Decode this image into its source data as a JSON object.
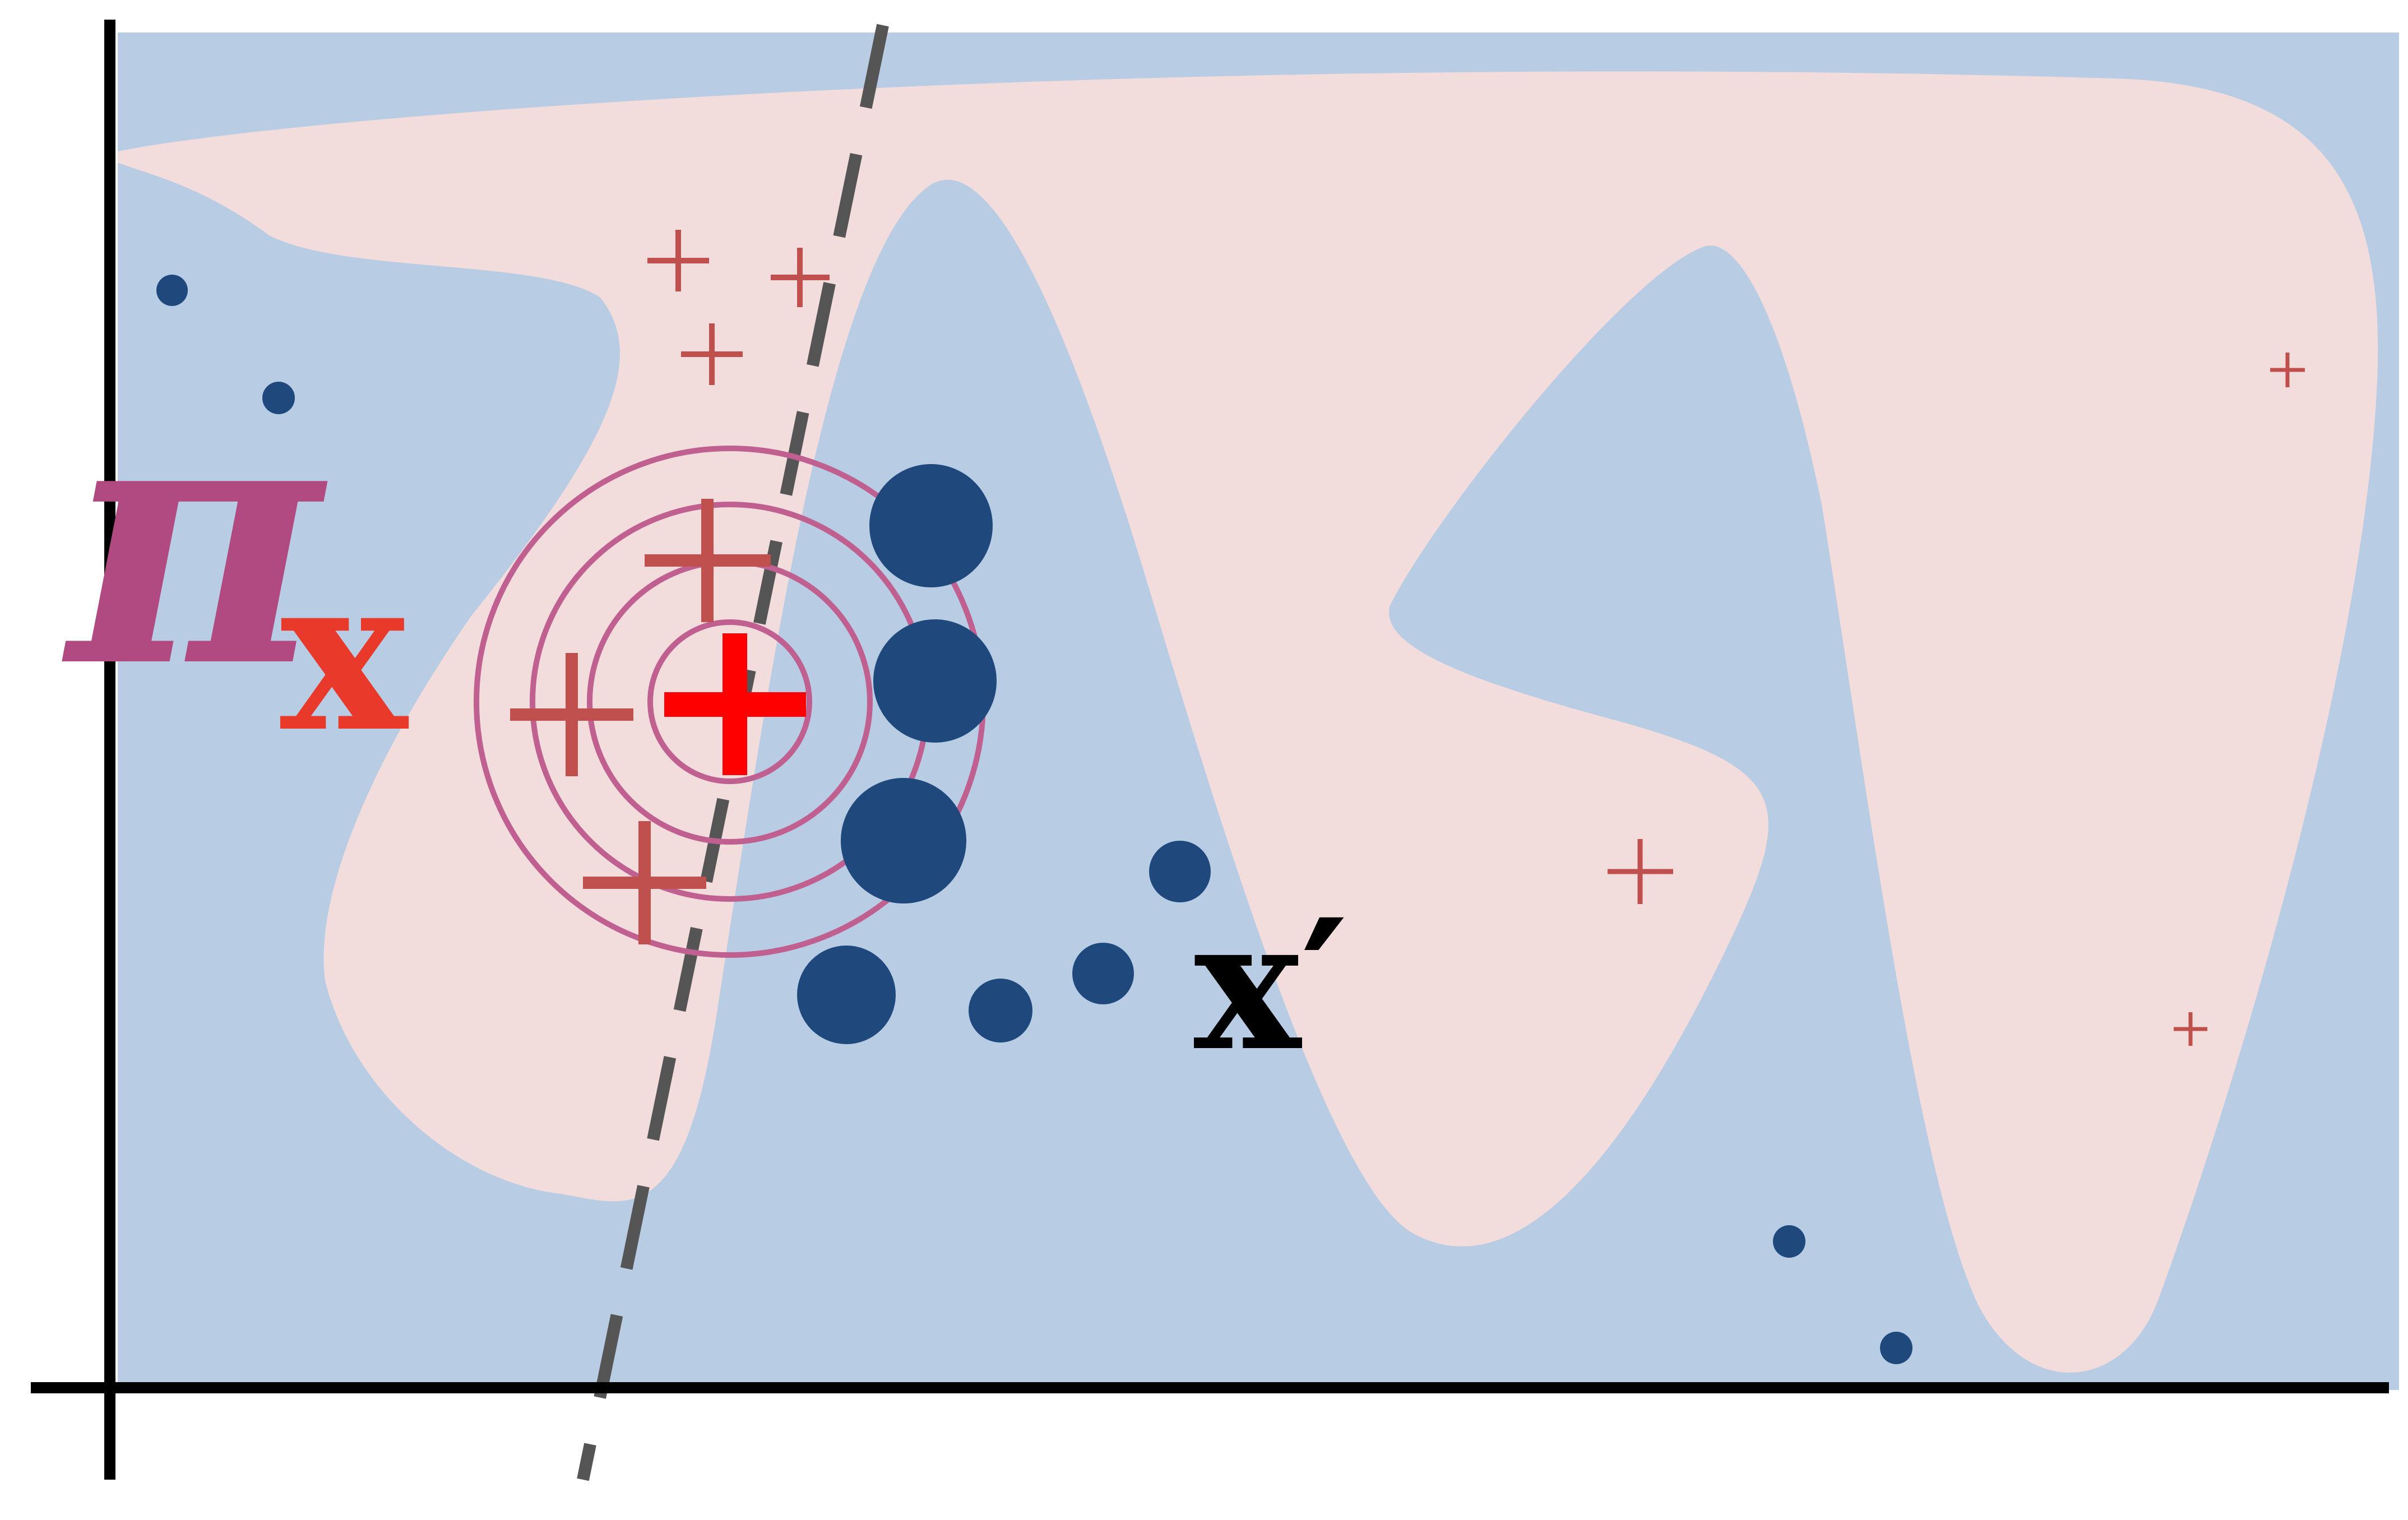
{
  "labels": {
    "pi": "π",
    "pi_subscript": "x",
    "x_prime": "x′"
  },
  "colors": {
    "background_region": "#b8cce4",
    "positive_region": "#f2dcdc",
    "negative_point": "#1f497d",
    "positive_marker": "#c0504d",
    "instance_marker": "#ff0000",
    "kernel_rings": "#c06090",
    "pi_label": "#b04a80",
    "subscript_label": "#e8392b",
    "decision_line": "#555555",
    "axes": "#000000"
  },
  "instance": {
    "marker": "plus",
    "emphasized": true
  },
  "kernel_rings_count": 4,
  "legend_icons": [
    "plus-marker-icon",
    "dot-marker-icon"
  ]
}
